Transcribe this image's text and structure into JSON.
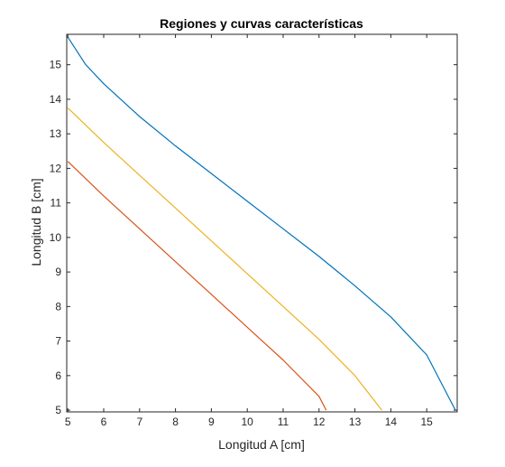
{
  "chart_data": {
    "type": "line",
    "title": "Regiones y curvas características",
    "xlabel": "Longitud A [cm]",
    "ylabel": "Longitud B [cm]",
    "xlim": [
      4.97,
      15.85
    ],
    "ylim": [
      4.95,
      15.88
    ],
    "xticks": [
      5,
      6,
      7,
      8,
      9,
      10,
      11,
      12,
      13,
      14,
      15
    ],
    "yticks": [
      5,
      6,
      7,
      8,
      9,
      10,
      11,
      12,
      13,
      14,
      15
    ],
    "grid": false,
    "colors": {
      "axis": "#262626",
      "text": "#262626",
      "background": "#ffffff"
    },
    "series": [
      {
        "color": "#0072BD",
        "x": [
          5.0,
          5.5,
          6.0,
          7.0,
          8.0,
          9.0,
          10.0,
          11.0,
          12.0,
          13.0,
          14.0,
          15.0,
          15.8
        ],
        "y": [
          15.8,
          15.0,
          14.45,
          13.5,
          12.65,
          11.85,
          11.05,
          10.25,
          9.45,
          8.6,
          7.7,
          6.6,
          5.0
        ]
      },
      {
        "color": "#EDB120",
        "x": [
          5.0,
          6.0,
          7.0,
          8.0,
          9.0,
          10.0,
          11.0,
          12.0,
          13.0,
          13.75
        ],
        "y": [
          13.75,
          12.75,
          11.8,
          10.85,
          9.9,
          8.95,
          8.0,
          7.05,
          6.0,
          5.0
        ]
      },
      {
        "color": "#D95319",
        "x": [
          5.0,
          6.0,
          7.0,
          8.0,
          9.0,
          10.0,
          11.0,
          12.0,
          12.2
        ],
        "y": [
          12.2,
          11.2,
          10.25,
          9.3,
          8.35,
          7.4,
          6.45,
          5.4,
          5.0
        ]
      }
    ]
  }
}
